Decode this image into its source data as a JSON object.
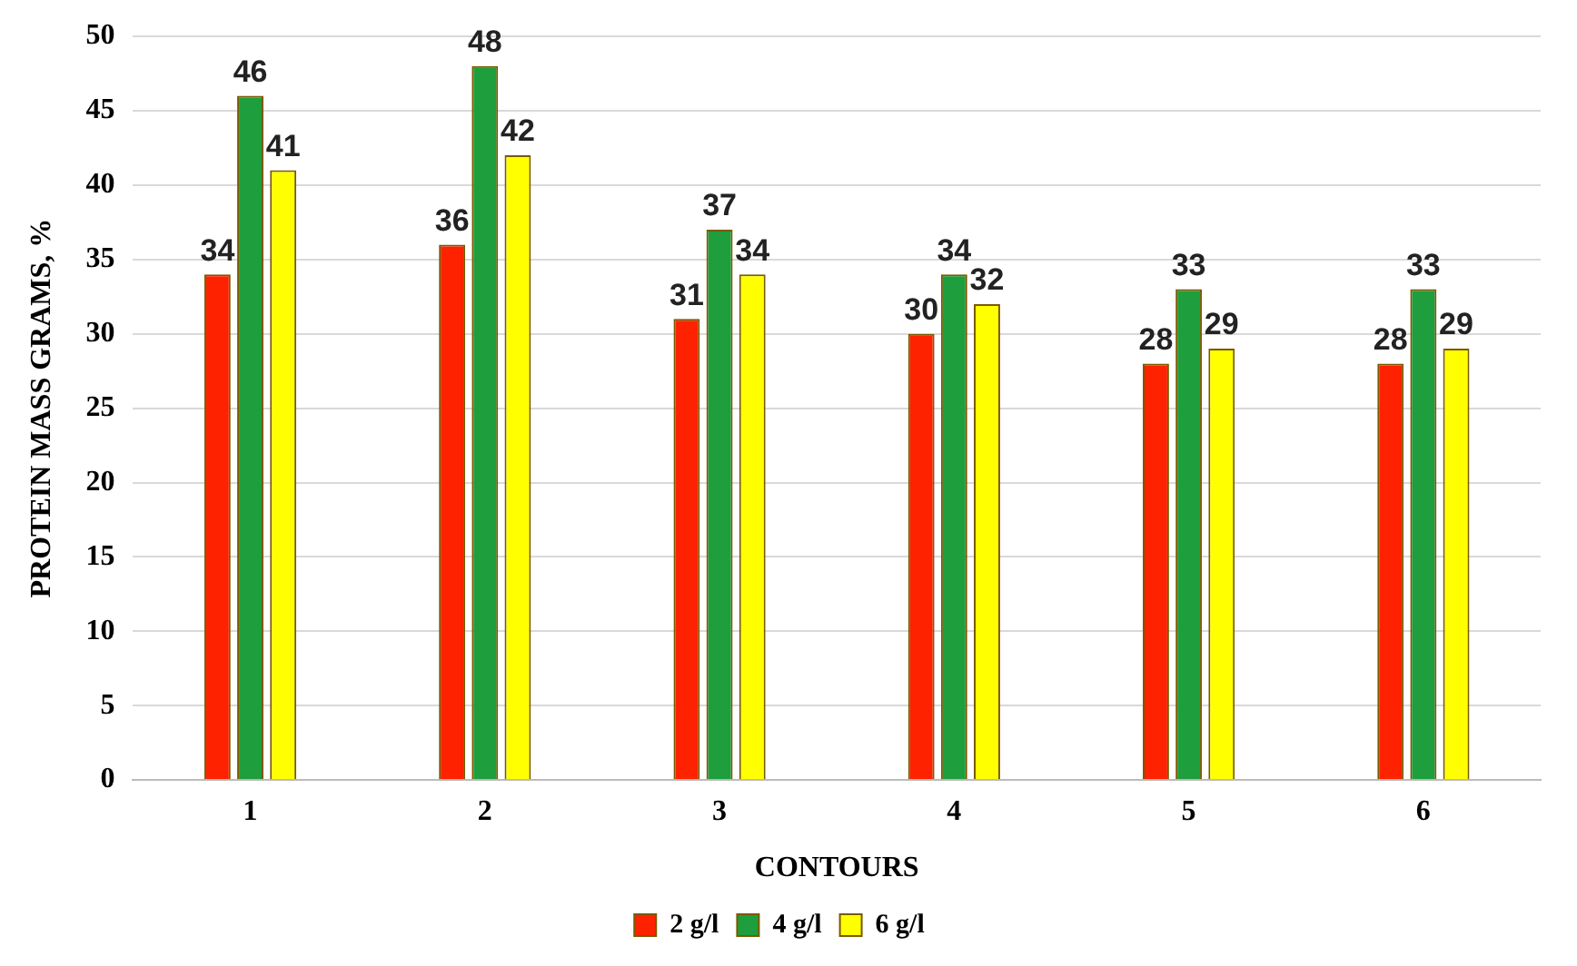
{
  "chart_data": {
    "type": "bar",
    "xlabel": "CONTOURS",
    "ylabel": "PROTEIN MASS GRAMS, %",
    "categories": [
      "1",
      "2",
      "3",
      "4",
      "5",
      "6"
    ],
    "series": [
      {
        "name": "2 g/l",
        "color": "#ff2200",
        "values": [
          34,
          36,
          31,
          30,
          28,
          28
        ]
      },
      {
        "name": "4 g/l",
        "color": "#1e9e3c",
        "values": [
          46,
          48,
          37,
          34,
          33,
          33
        ]
      },
      {
        "name": "6 g/l",
        "color": "#ffff00",
        "values": [
          41,
          42,
          34,
          32,
          29,
          29
        ]
      }
    ],
    "ylim": [
      0,
      50
    ],
    "yticks": [
      0,
      5,
      10,
      15,
      20,
      25,
      30,
      35,
      40,
      45,
      50
    ],
    "grid": "y",
    "legend": "bottom",
    "data_labels": true
  }
}
